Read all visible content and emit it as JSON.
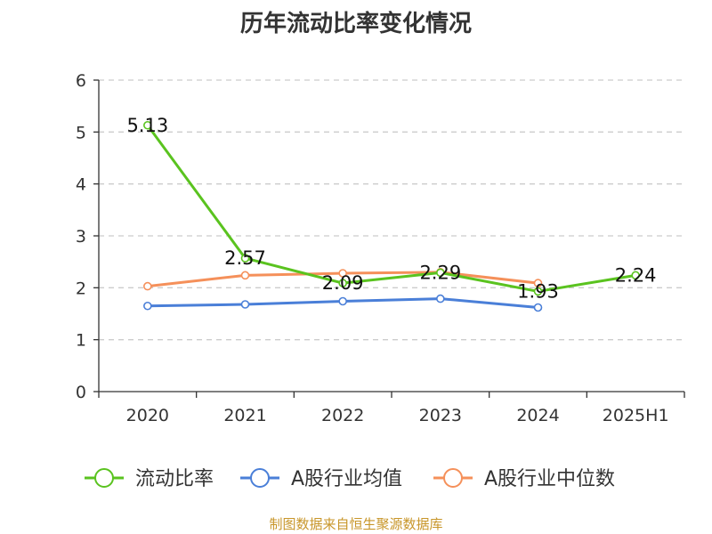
{
  "title": "历年流动比率变化情况",
  "footer": "制图数据来自恒生聚源数据库",
  "colors": {
    "footer": "#c8962a",
    "axis": "#333333",
    "grid": "#cccccc"
  },
  "chart_data": {
    "type": "line",
    "categories": [
      "2020",
      "2021",
      "2022",
      "2023",
      "2024",
      "2025H1"
    ],
    "ylim": [
      0,
      6
    ],
    "yticks": [
      "0",
      "1",
      "2",
      "3",
      "4",
      "5",
      "6"
    ],
    "grid": true,
    "legend_position": "bottom",
    "series": [
      {
        "name": "流动比率",
        "color": "#5ac31f",
        "values": [
          5.13,
          2.57,
          2.09,
          2.29,
          1.93,
          2.24
        ],
        "labels": [
          "5.13",
          "2.57",
          "2.09",
          "2.29",
          "1.93",
          "2.24"
        ]
      },
      {
        "name": "A股行业均值",
        "color": "#4a7fd8",
        "values": [
          1.65,
          1.68,
          1.74,
          1.79,
          1.62,
          null
        ]
      },
      {
        "name": "A股行业中位数",
        "color": "#f5905a",
        "values": [
          2.03,
          2.24,
          2.28,
          2.3,
          2.09,
          null
        ]
      }
    ]
  }
}
